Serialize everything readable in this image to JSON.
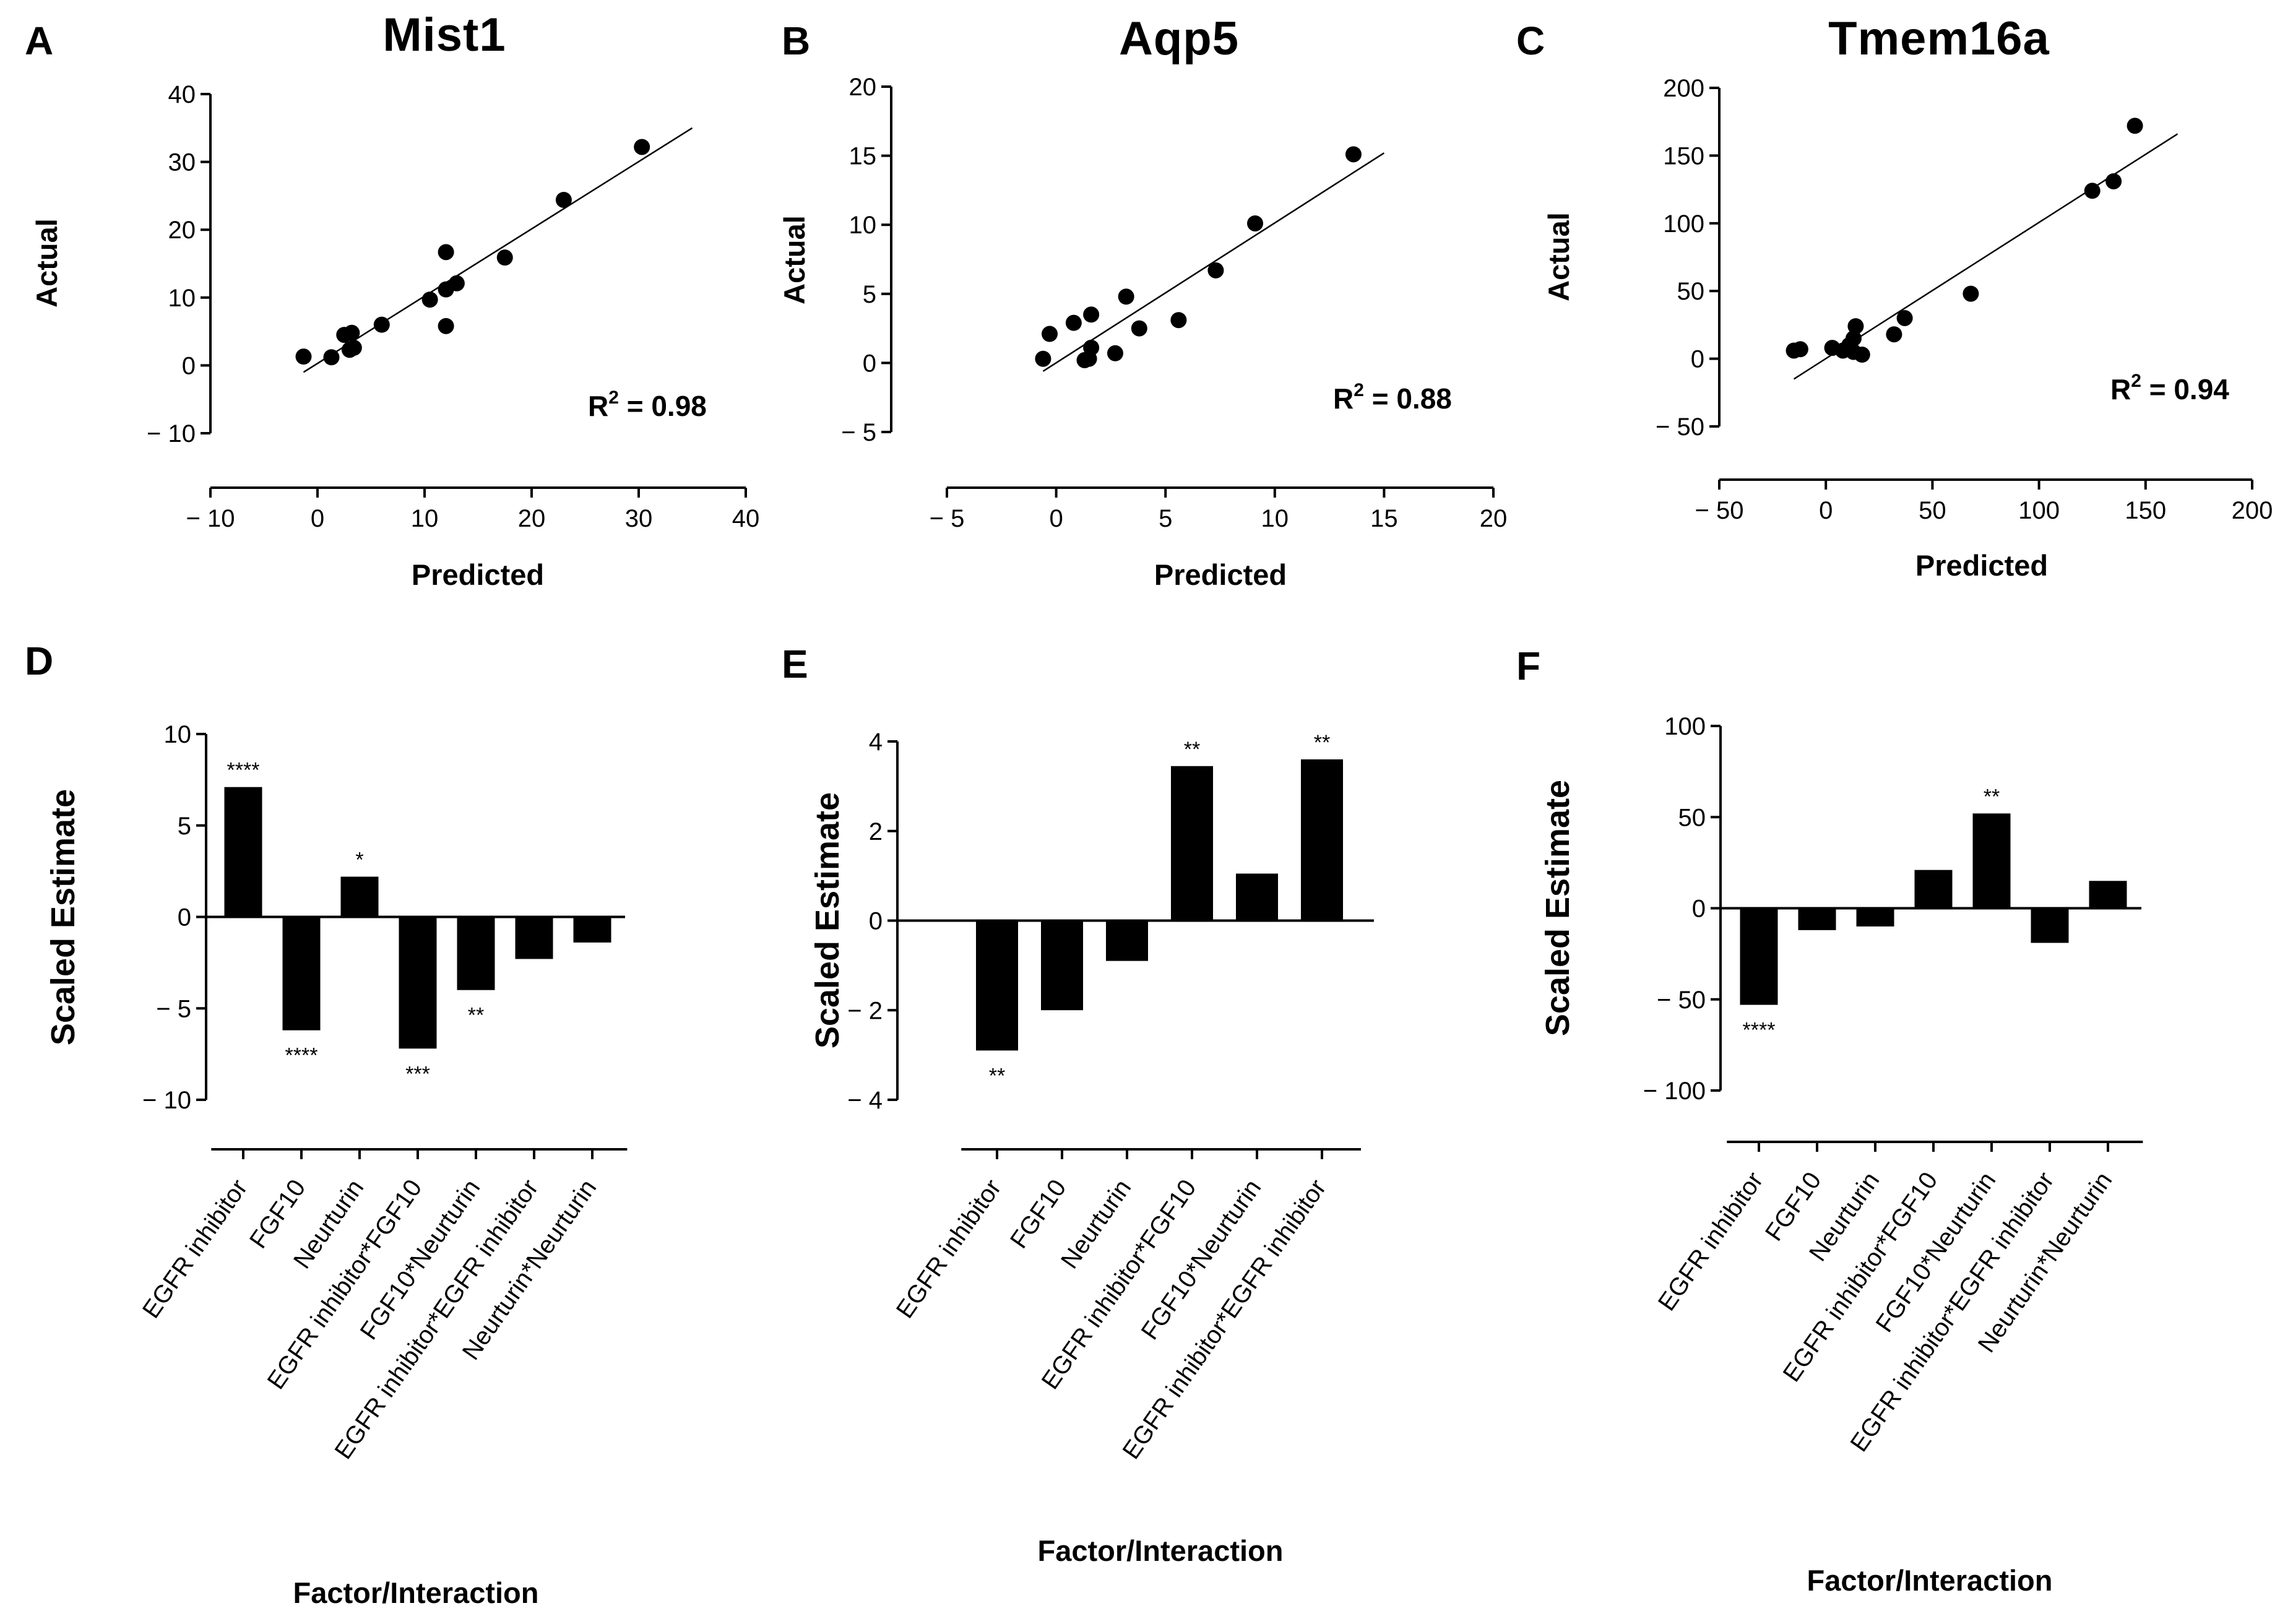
{
  "chart_data": [
    {
      "panel": "A",
      "type": "scatter",
      "title": "Mist1",
      "xlabel": "Predicted",
      "ylabel": "Actual",
      "xlim": [
        -10,
        40
      ],
      "ylim": [
        -10,
        40
      ],
      "xticks": [
        -10,
        0,
        10,
        20,
        30,
        40
      ],
      "yticks": [
        -10,
        0,
        10,
        20,
        30,
        40
      ],
      "xtick_labels": [
        "− 10",
        "0",
        "10",
        "20",
        "30",
        "40"
      ],
      "ytick_labels": [
        "− 10",
        "0",
        "10",
        "20",
        "30",
        "40"
      ],
      "points": [
        [
          -1.3,
          1.3
        ],
        [
          1.3,
          1.2
        ],
        [
          2.5,
          4.5
        ],
        [
          3.2,
          4.8
        ],
        [
          3.0,
          2.3
        ],
        [
          3.4,
          2.6
        ],
        [
          6.0,
          6.0
        ],
        [
          10.5,
          9.7
        ],
        [
          12.0,
          11.2
        ],
        [
          12.0,
          16.7
        ],
        [
          12.0,
          5.8
        ],
        [
          13.0,
          12.1
        ],
        [
          17.5,
          15.9
        ],
        [
          23.0,
          24.4
        ],
        [
          30.3,
          32.2
        ]
      ],
      "fit_line": [
        [
          -1.3,
          -1.0
        ],
        [
          35,
          35
        ]
      ],
      "r2_label": "R",
      "r2_sup": "2",
      "r2_value": " = 0.98"
    },
    {
      "panel": "B",
      "type": "scatter",
      "title": "Aqp5",
      "xlabel": "Predicted",
      "ylabel": "Actual",
      "xlim": [
        -5,
        20
      ],
      "ylim": [
        -5,
        20
      ],
      "xticks": [
        -5,
        0,
        5,
        10,
        15,
        20
      ],
      "yticks": [
        -5,
        0,
        5,
        10,
        15,
        20
      ],
      "xtick_labels": [
        "− 5",
        "0",
        "5",
        "10",
        "15",
        "20"
      ],
      "ytick_labels": [
        "− 5",
        "0",
        "5",
        "10",
        "15",
        "20"
      ],
      "points": [
        [
          -0.6,
          0.3
        ],
        [
          -0.3,
          2.1
        ],
        [
          0.8,
          2.9
        ],
        [
          1.3,
          0.2
        ],
        [
          1.5,
          0.3
        ],
        [
          1.6,
          1.1
        ],
        [
          1.6,
          3.5
        ],
        [
          2.7,
          0.7
        ],
        [
          3.2,
          4.8
        ],
        [
          3.8,
          2.5
        ],
        [
          5.6,
          3.1
        ],
        [
          7.3,
          6.7
        ],
        [
          9.1,
          10.1
        ],
        [
          13.6,
          15.1
        ]
      ],
      "fit_line": [
        [
          -0.6,
          -0.6
        ],
        [
          15,
          15.2
        ]
      ],
      "r2_label": "R",
      "r2_sup": "2",
      "r2_value": " = 0.88"
    },
    {
      "panel": "C",
      "type": "scatter",
      "title": "Tmem16a",
      "xlabel": "Predicted",
      "ylabel": "Actual",
      "xlim": [
        -50,
        200
      ],
      "ylim": [
        -50,
        200
      ],
      "xticks": [
        -50,
        0,
        50,
        100,
        150,
        200
      ],
      "yticks": [
        -50,
        0,
        50,
        100,
        150,
        200
      ],
      "xtick_labels": [
        "− 50",
        "0",
        "50",
        "100",
        "150",
        "200"
      ],
      "ytick_labels": [
        "− 50",
        "0",
        "50",
        "100",
        "150",
        "200"
      ],
      "points": [
        [
          -15,
          6
        ],
        [
          -12,
          7
        ],
        [
          3,
          8
        ],
        [
          8,
          6
        ],
        [
          11,
          10
        ],
        [
          13,
          5
        ],
        [
          13,
          15
        ],
        [
          14,
          24
        ],
        [
          17,
          3
        ],
        [
          32,
          18
        ],
        [
          37,
          30
        ],
        [
          68,
          48
        ],
        [
          125,
          124
        ],
        [
          135,
          131
        ],
        [
          145,
          172
        ]
      ],
      "fit_line": [
        [
          -15,
          -15
        ],
        [
          165,
          166
        ]
      ],
      "r2_label": "R",
      "r2_sup": "2",
      "r2_value": " = 0.94"
    },
    {
      "panel": "D",
      "type": "bar",
      "xlabel": "Factor/Interaction",
      "ylabel": "Scaled Estimate",
      "ylim": [
        -10,
        10
      ],
      "yticks": [
        -10,
        -5,
        0,
        5,
        10
      ],
      "ytick_labels": [
        "− 10",
        "− 5",
        "0",
        "5",
        "10"
      ],
      "categories": [
        "EGFR inhibitor",
        "FGF10",
        "Neurturin",
        "EGFR inhibitor*FGF10",
        "FGF10*Neurturin",
        "EGFR inhibitor*EGFR inhibitor",
        "Neurturin*Neurturin"
      ],
      "values": [
        7.1,
        -6.2,
        2.2,
        -7.2,
        -4.0,
        -2.3,
        -1.4
      ],
      "significance": [
        "****",
        "****",
        "*",
        "***",
        "**",
        "",
        ""
      ]
    },
    {
      "panel": "E",
      "type": "bar",
      "xlabel": "Factor/Interaction",
      "ylabel": "Scaled Estimate",
      "ylim": [
        -4,
        4
      ],
      "yticks": [
        -4,
        -2,
        0,
        2,
        4
      ],
      "ytick_labels": [
        "− 4",
        "− 2",
        "0",
        "2",
        "4"
      ],
      "categories": [
        "EGFR inhibitor",
        "FGF10",
        "Neurturin",
        "EGFR inhibitor*FGF10",
        "FGF10*Neurturin",
        "EGFR inhibitor*EGFR inhibitor"
      ],
      "values": [
        -2.9,
        -2.0,
        -0.9,
        3.45,
        1.05,
        3.6
      ],
      "significance": [
        "**",
        "",
        "",
        "**",
        "",
        "**"
      ]
    },
    {
      "panel": "F",
      "type": "bar",
      "xlabel": "Factor/Interaction",
      "ylabel": "Scaled Estimate",
      "ylim": [
        -100,
        100
      ],
      "yticks": [
        -100,
        -50,
        0,
        50,
        100
      ],
      "ytick_labels": [
        "− 100",
        "− 50",
        "0",
        "50",
        "100"
      ],
      "categories": [
        "EGFR inhibitor",
        "FGF10",
        "Neurturin",
        "EGFR inhibitor*FGF10",
        "FGF10*Neurturin",
        "EGFR inhibitor*EGFR inhibitor",
        "Neurturin*Neurturin"
      ],
      "values": [
        -53,
        -12,
        -10,
        21,
        52,
        -19,
        15
      ],
      "significance": [
        "****",
        "",
        "",
        "",
        "**",
        "",
        ""
      ]
    }
  ]
}
